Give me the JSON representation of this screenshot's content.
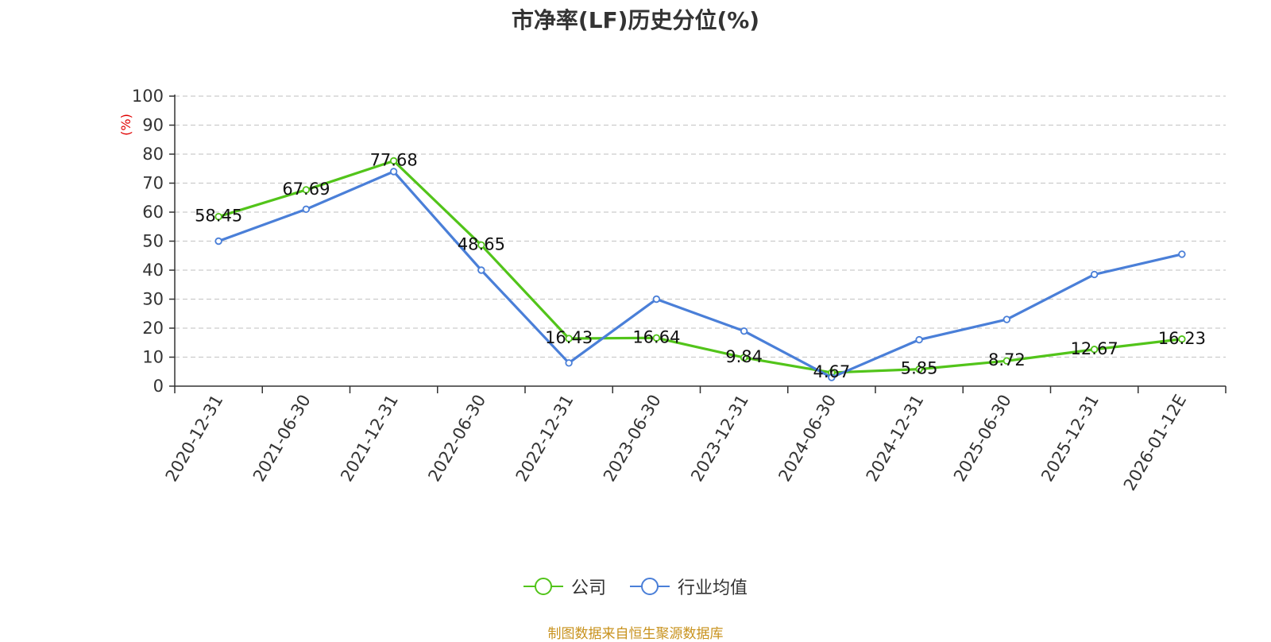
{
  "title": "市净率(LF)历史分位(%)",
  "source_note": "制图数据来自恒生聚源数据库",
  "colors": {
    "company": "#52c41a",
    "industry": "#4a7fd8",
    "unit_label": "#e00000"
  },
  "legend": {
    "company": "公司",
    "industry": "行业均值"
  },
  "chart_data": {
    "type": "line",
    "title": "市净率(LF)历史分位(%)",
    "ylabel": "(%)",
    "ylim": [
      0,
      100
    ],
    "yticks": [
      0,
      10,
      20,
      30,
      40,
      50,
      60,
      70,
      80,
      90,
      100
    ],
    "grid": true,
    "legend_position": "bottom",
    "categories": [
      "2020-12-31",
      "2021-06-30",
      "2021-12-31",
      "2022-06-30",
      "2022-12-31",
      "2023-06-30",
      "2023-12-31",
      "2024-06-30",
      "2024-12-31",
      "2025-06-30",
      "2025-12-31",
      "2026-01-12E"
    ],
    "series": [
      {
        "name": "公司",
        "values": [
          58.45,
          67.69,
          77.68,
          48.65,
          16.43,
          16.64,
          9.84,
          4.67,
          5.85,
          8.72,
          12.67,
          16.23
        ],
        "labels": [
          "58.45",
          "67.69",
          "77.68",
          "48.65",
          "16.43",
          "16.64",
          "9.84",
          "4.67",
          "5.85",
          "8.72",
          "12.67",
          "16.23"
        ]
      },
      {
        "name": "行业均值",
        "values": [
          50,
          61,
          74,
          40,
          8,
          30,
          19,
          3,
          16,
          23,
          38.5,
          45.5
        ]
      }
    ]
  }
}
